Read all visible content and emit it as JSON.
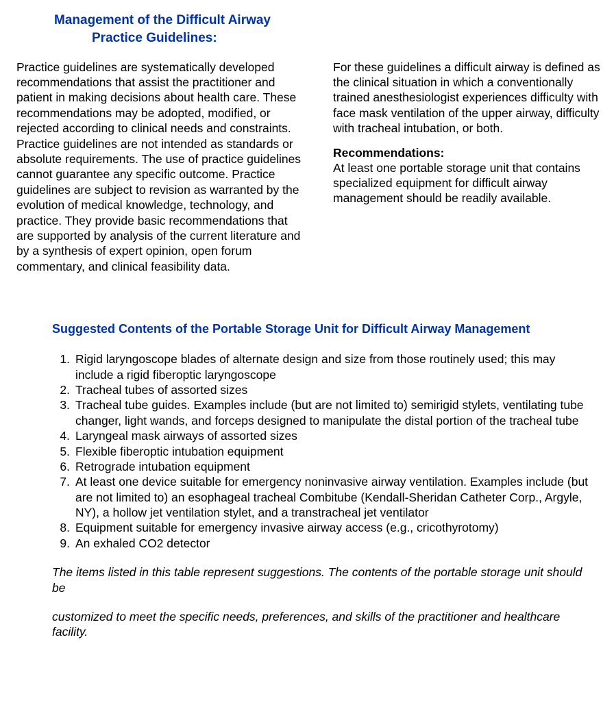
{
  "colors": {
    "heading": "#0033aa",
    "body": "#000000",
    "background": "#ffffff"
  },
  "typography": {
    "title_fontsize": 19,
    "subtitle_fontsize": 18,
    "body_fontsize": 17.5,
    "font_family": "Arial"
  },
  "header": {
    "title_line1": "Management of the Difficult Airway",
    "title_line2": "Practice Guidelines:"
  },
  "columns": {
    "left": {
      "paragraph": "Practice guidelines are systematically developed recommendations that assist the practitioner and patient in making decisions about health care. These recommendations may be adopted, modified, or rejected according to clinical needs and constraints. Practice guidelines are not intended as standards or absolute requirements. The use of practice guidelines cannot guarantee any specific outcome. Practice guidelines are subject to revision as warranted by the evolution of medical knowledge, technology, and practice. They provide basic recommendations that are supported by analysis of the current literature and by a synthesis of expert opinion, open forum commentary, and clinical feasibility data."
    },
    "right": {
      "paragraph1": "For these guidelines a difficult airway is defined as the clinical situation in which a conventionally trained anesthesiologist experiences difficulty with face mask ventilation of the upper airway, difficulty with tracheal intubation, or both.",
      "rec_heading": "Recommendations:",
      "paragraph2": "At least one portable storage unit that contains specialized equipment for difficult airway management should be readily available."
    }
  },
  "section2": {
    "title": "Suggested Contents of the Portable Storage Unit for Difficult Airway Management",
    "items": [
      "Rigid laryngoscope blades of alternate design and size from those routinely used; this may include a rigid fiberoptic laryngoscope",
      "Tracheal tubes of assorted sizes",
      "Tracheal tube guides. Examples include (but are not limited to) semirigid stylets, ventilating tube changer, light wands, and forceps designed to manipulate the distal portion of the tracheal tube",
      "Laryngeal mask airways of assorted sizes",
      "Flexible fiberoptic intubation equipment",
      "Retrograde intubation equipment",
      "At least one device suitable for emergency noninvasive airway ventilation. Examples include (but are not limited to) an esophageal tracheal Combitube (Kendall-Sheridan Catheter Corp., Argyle, NY), a hollow jet ventilation stylet, and a transtracheal jet ventilator",
      "Equipment suitable for emergency invasive airway access (e.g., cricothyrotomy)",
      "An exhaled CO2 detector"
    ],
    "footnote_line1": "The items listed in this table represent suggestions. The contents of the portable storage unit should be",
    "footnote_line2": "customized to meet the specific needs, preferences, and skills of the practitioner and healthcare facility."
  }
}
